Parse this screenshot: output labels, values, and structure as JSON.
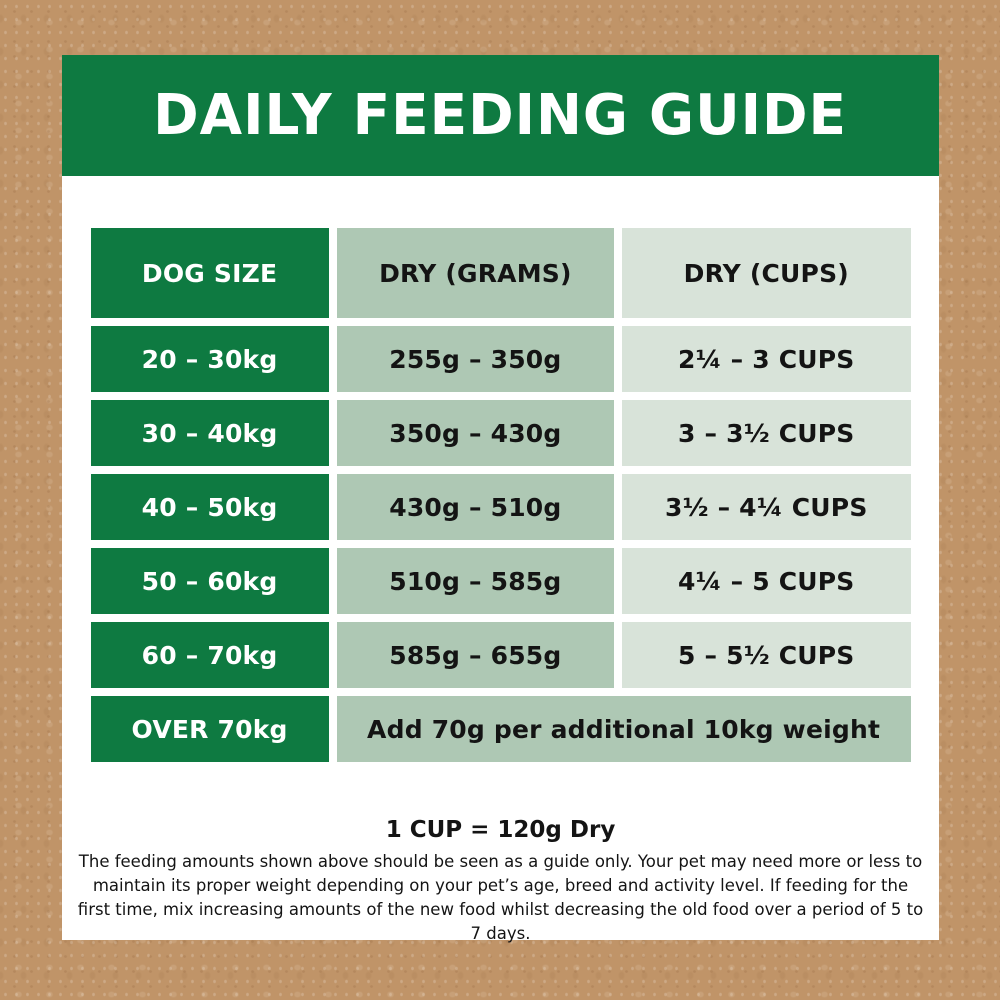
{
  "title": "DAILY FEEDING GUIDE",
  "table": {
    "headers": {
      "dog_size": "DOG SIZE",
      "dry_grams": "DRY (GRAMS)",
      "dry_cups": "DRY (CUPS)"
    },
    "rows": [
      {
        "size": "20 – 30kg",
        "grams": "255g – 350g",
        "cups": "2¼ – 3 CUPS"
      },
      {
        "size": "30 – 40kg",
        "grams": "350g – 430g",
        "cups": "3 – 3½ CUPS"
      },
      {
        "size": "40 – 50kg",
        "grams": "430g – 510g",
        "cups": "3½ – 4¼ CUPS"
      },
      {
        "size": "50 – 60kg",
        "grams": "510g – 585g",
        "cups": "4¼ – 5 CUPS"
      },
      {
        "size": "60 – 70kg",
        "grams": "585g – 655g",
        "cups": "5 – 5½ CUPS"
      },
      {
        "size": "OVER 70kg",
        "note": "Add 70g per additional 10kg weight"
      }
    ]
  },
  "footer": {
    "cup_equivalence": "1 CUP = 120g Dry",
    "disclaimer": "The feeding amounts shown above should be seen as a guide only. Your pet may need more or less to maintain its proper weight depending on your pet’s age, breed and activity level. If feeding for the first time, mix increasing amounts of the new food whilst decreasing the old food over a period of 5 to 7 days."
  },
  "colors": {
    "brand-green": "#0e7a41",
    "sage": "#aec8b4",
    "sage-light": "#d8e3d9",
    "border-brown": "#c09468",
    "panel-white": "#ffffff",
    "ink": "#141414"
  }
}
